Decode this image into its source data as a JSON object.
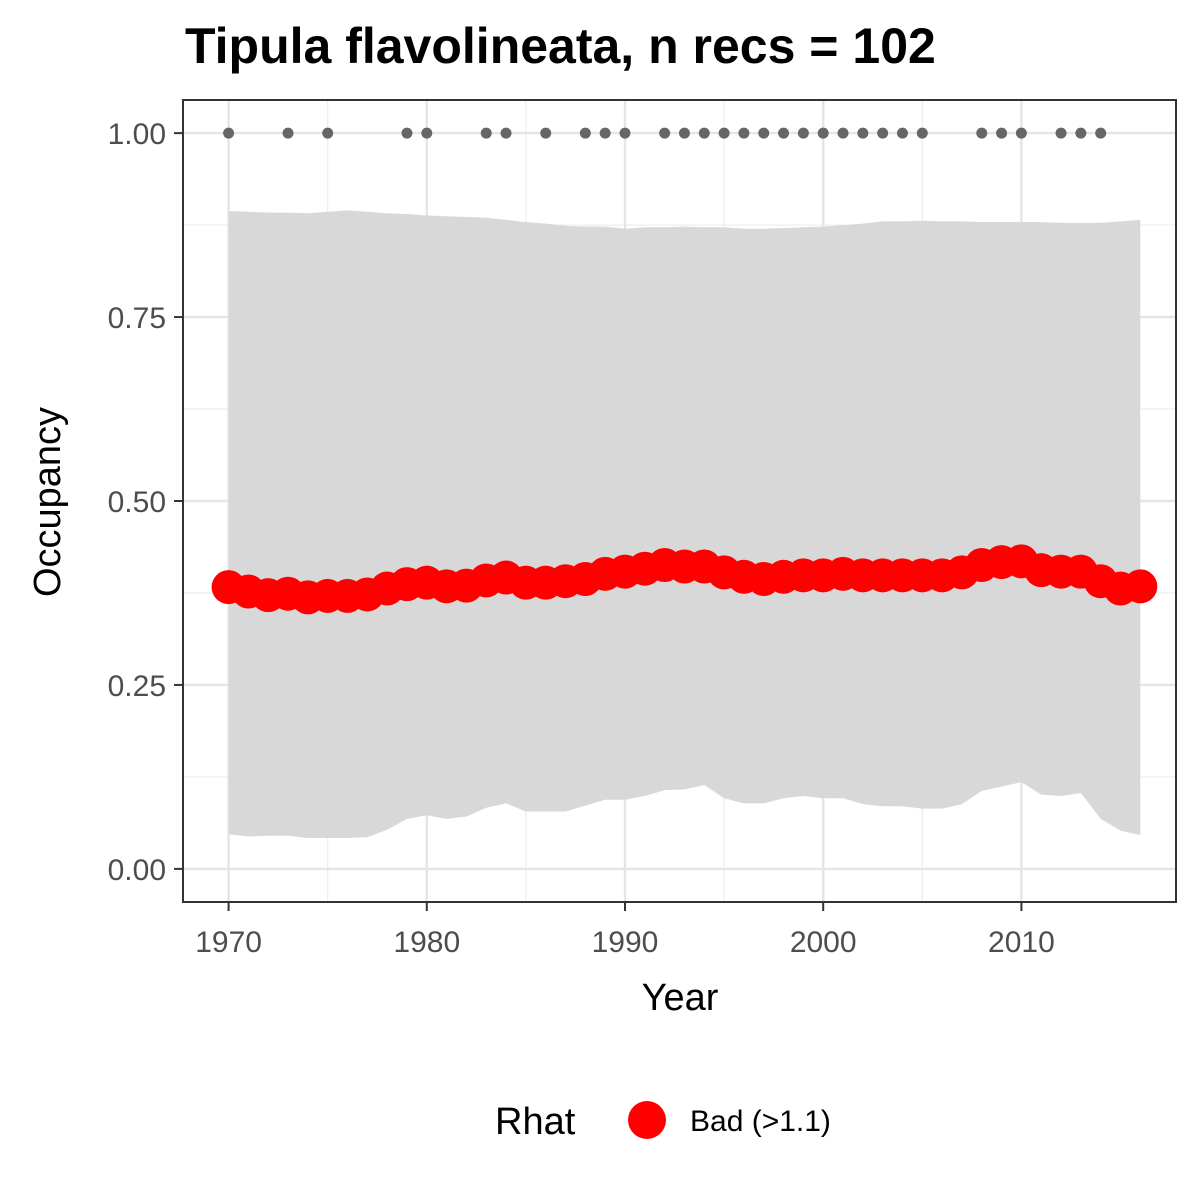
{
  "chart_data": {
    "type": "line",
    "title": "Tipula flavolineata, n recs = 102",
    "xlabel": "Year",
    "ylabel": "Occupancy",
    "xlim": [
      1967.7,
      2017.8
    ],
    "ylim": [
      -0.045,
      1.045
    ],
    "x_ticks": [
      1970,
      1980,
      1990,
      2000,
      2010
    ],
    "x_tick_labels": [
      "1970",
      "1980",
      "1990",
      "2000",
      "2010"
    ],
    "y_ticks": [
      0,
      0.25,
      0.5,
      0.75,
      1
    ],
    "y_tick_labels": [
      "0.00",
      "0.25",
      "0.50",
      "0.75",
      "1.00"
    ],
    "grid": true,
    "legend": {
      "title": "Rhat",
      "position": "bottom",
      "entries": [
        {
          "label": "Bad (>1.1)",
          "color": "#ff0000"
        }
      ]
    },
    "colors": {
      "estimate": "#ff0000",
      "ribbon": "#d6d6d6",
      "records": "#666666"
    },
    "years": [
      1970,
      1971,
      1972,
      1973,
      1974,
      1975,
      1976,
      1977,
      1978,
      1979,
      1980,
      1981,
      1982,
      1983,
      1984,
      1985,
      1986,
      1987,
      1988,
      1989,
      1990,
      1991,
      1992,
      1993,
      1994,
      1995,
      1996,
      1997,
      1998,
      1999,
      2000,
      2001,
      2002,
      2003,
      2004,
      2005,
      2006,
      2007,
      2008,
      2009,
      2010,
      2011,
      2012,
      2013,
      2014,
      2015,
      2016
    ],
    "series": [
      {
        "name": "Bad (>1.1)",
        "values": [
          0.383,
          0.377,
          0.372,
          0.374,
          0.369,
          0.371,
          0.371,
          0.373,
          0.381,
          0.387,
          0.389,
          0.384,
          0.385,
          0.392,
          0.396,
          0.389,
          0.389,
          0.391,
          0.394,
          0.401,
          0.404,
          0.408,
          0.413,
          0.411,
          0.411,
          0.403,
          0.397,
          0.394,
          0.397,
          0.399,
          0.399,
          0.401,
          0.399,
          0.399,
          0.399,
          0.399,
          0.399,
          0.403,
          0.413,
          0.417,
          0.418,
          0.406,
          0.404,
          0.404,
          0.391,
          0.381,
          0.384
        ]
      }
    ],
    "ribbon_upper": [
      0.894,
      0.893,
      0.892,
      0.892,
      0.891,
      0.893,
      0.895,
      0.893,
      0.891,
      0.89,
      0.888,
      0.887,
      0.886,
      0.885,
      0.882,
      0.879,
      0.877,
      0.874,
      0.873,
      0.873,
      0.87,
      0.872,
      0.872,
      0.873,
      0.872,
      0.872,
      0.87,
      0.87,
      0.871,
      0.872,
      0.873,
      0.875,
      0.877,
      0.88,
      0.88,
      0.881,
      0.88,
      0.88,
      0.879,
      0.879,
      0.879,
      0.879,
      0.878,
      0.878,
      0.878,
      0.88,
      0.882
    ],
    "ribbon_lower": [
      0.047,
      0.044,
      0.045,
      0.045,
      0.042,
      0.042,
      0.042,
      0.043,
      0.053,
      0.068,
      0.073,
      0.068,
      0.071,
      0.083,
      0.089,
      0.078,
      0.078,
      0.078,
      0.086,
      0.094,
      0.094,
      0.099,
      0.107,
      0.108,
      0.114,
      0.096,
      0.089,
      0.089,
      0.096,
      0.099,
      0.096,
      0.096,
      0.088,
      0.085,
      0.085,
      0.082,
      0.082,
      0.088,
      0.106,
      0.112,
      0.118,
      0.101,
      0.099,
      0.103,
      0.068,
      0.052,
      0.046
    ],
    "record_years": [
      1970,
      1973,
      1975,
      1979,
      1980,
      1983,
      1984,
      1986,
      1988,
      1989,
      1990,
      1992,
      1993,
      1994,
      1995,
      1996,
      1997,
      1998,
      1999,
      2000,
      2001,
      2002,
      2003,
      2004,
      2005,
      2008,
      2009,
      2010,
      2012,
      2013,
      2014
    ],
    "record_value": 1
  }
}
